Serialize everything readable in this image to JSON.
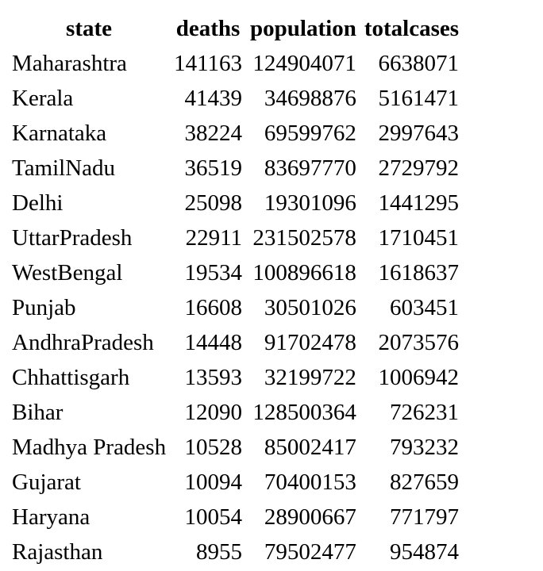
{
  "table": {
    "headers": [
      "state",
      "deaths",
      "population",
      "totalcases"
    ],
    "rows": [
      [
        "Maharashtra",
        "141163",
        "124904071",
        "6638071"
      ],
      [
        "Kerala",
        "41439",
        "34698876",
        "5161471"
      ],
      [
        "Karnataka",
        "38224",
        "69599762",
        "2997643"
      ],
      [
        "TamilNadu",
        "36519",
        "83697770",
        "2729792"
      ],
      [
        "Delhi",
        "25098",
        "19301096",
        "1441295"
      ],
      [
        "UttarPradesh",
        "22911",
        "231502578",
        "1710451"
      ],
      [
        "WestBengal",
        "19534",
        "100896618",
        "1618637"
      ],
      [
        "Punjab",
        "16608",
        "30501026",
        "603451"
      ],
      [
        "AndhraPradesh",
        "14448",
        "91702478",
        "2073576"
      ],
      [
        "Chhattisgarh",
        "13593",
        "32199722",
        "1006942"
      ],
      [
        "Bihar",
        "12090",
        "128500364",
        "726231"
      ],
      [
        "Madhya Pradesh",
        "10528",
        "85002417",
        "793232"
      ],
      [
        "Gujarat",
        "10094",
        "70400153",
        "827659"
      ],
      [
        "Haryana",
        "10054",
        "28900667",
        "771797"
      ],
      [
        "Rajasthan",
        "8955",
        "79502477",
        "954874"
      ]
    ]
  }
}
